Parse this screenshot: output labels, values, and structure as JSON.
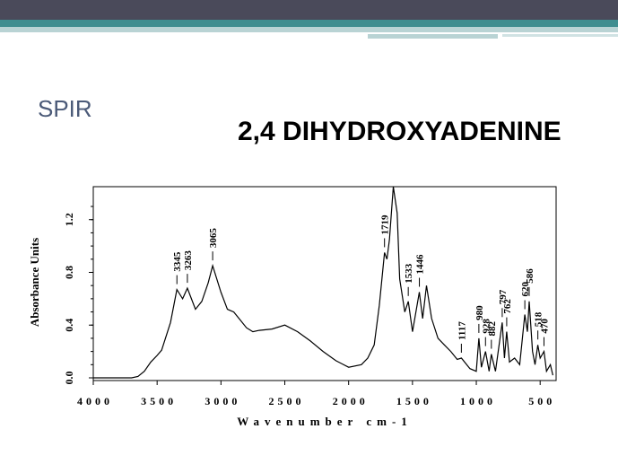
{
  "slide_title": "SPIR",
  "chart_data": {
    "type": "line",
    "title": "2,4 DIHYDROXYADENINE",
    "x_label": "Wavenumber cm-1",
    "y_label": "Absorbance Units",
    "xlim": [
      4000,
      375
    ],
    "xticks": [
      4000,
      3500,
      3000,
      2500,
      2000,
      1500,
      1000,
      500
    ],
    "ylim": [
      0,
      1.45
    ],
    "yticks": [
      {
        "value": 0,
        "label": "0.0"
      },
      0.4,
      0.8,
      1.2
    ],
    "series": [
      {
        "color": "#000000",
        "x": [
          4000,
          3700,
          3650,
          3600,
          3550,
          3500,
          3465,
          3395,
          3345,
          3300,
          3263,
          3200,
          3150,
          3100,
          3065,
          3000,
          2950,
          2900,
          2850,
          2800,
          2750,
          2700,
          2600,
          2500,
          2400,
          2300,
          2200,
          2100,
          2000,
          1900,
          1850,
          1800,
          1760,
          1719,
          1700,
          1680,
          1650,
          1620,
          1600,
          1560,
          1533,
          1500,
          1446,
          1420,
          1390,
          1350,
          1300,
          1250,
          1200,
          1150,
          1117,
          1050,
          1000,
          980,
          960,
          928,
          900,
          882,
          850,
          797,
          780,
          762,
          740,
          700,
          660,
          620,
          600,
          586,
          560,
          540,
          518,
          500,
          470,
          450,
          420,
          400
        ],
        "values": [
          0,
          0,
          0.01,
          0.05,
          0.12,
          0.17,
          0.21,
          0.42,
          0.67,
          0.6,
          0.68,
          0.52,
          0.58,
          0.72,
          0.85,
          0.65,
          0.52,
          0.5,
          0.44,
          0.38,
          0.35,
          0.36,
          0.37,
          0.4,
          0.35,
          0.28,
          0.2,
          0.13,
          0.08,
          0.1,
          0.15,
          0.25,
          0.55,
          0.95,
          0.9,
          1.05,
          1.45,
          1.25,
          0.75,
          0.5,
          0.58,
          0.35,
          0.65,
          0.45,
          0.7,
          0.45,
          0.3,
          0.25,
          0.2,
          0.14,
          0.15,
          0.07,
          0.05,
          0.3,
          0.08,
          0.2,
          0.05,
          0.18,
          0.05,
          0.42,
          0.15,
          0.35,
          0.12,
          0.15,
          0.1,
          0.48,
          0.35,
          0.58,
          0.2,
          0.1,
          0.25,
          0.15,
          0.2,
          0.05,
          0.1,
          0.02
        ]
      }
    ],
    "peak_labels": [
      3345,
      3263,
      3065,
      1719,
      1533,
      1446,
      1117,
      980,
      928,
      882,
      797,
      762,
      620,
      586,
      518,
      470
    ]
  }
}
